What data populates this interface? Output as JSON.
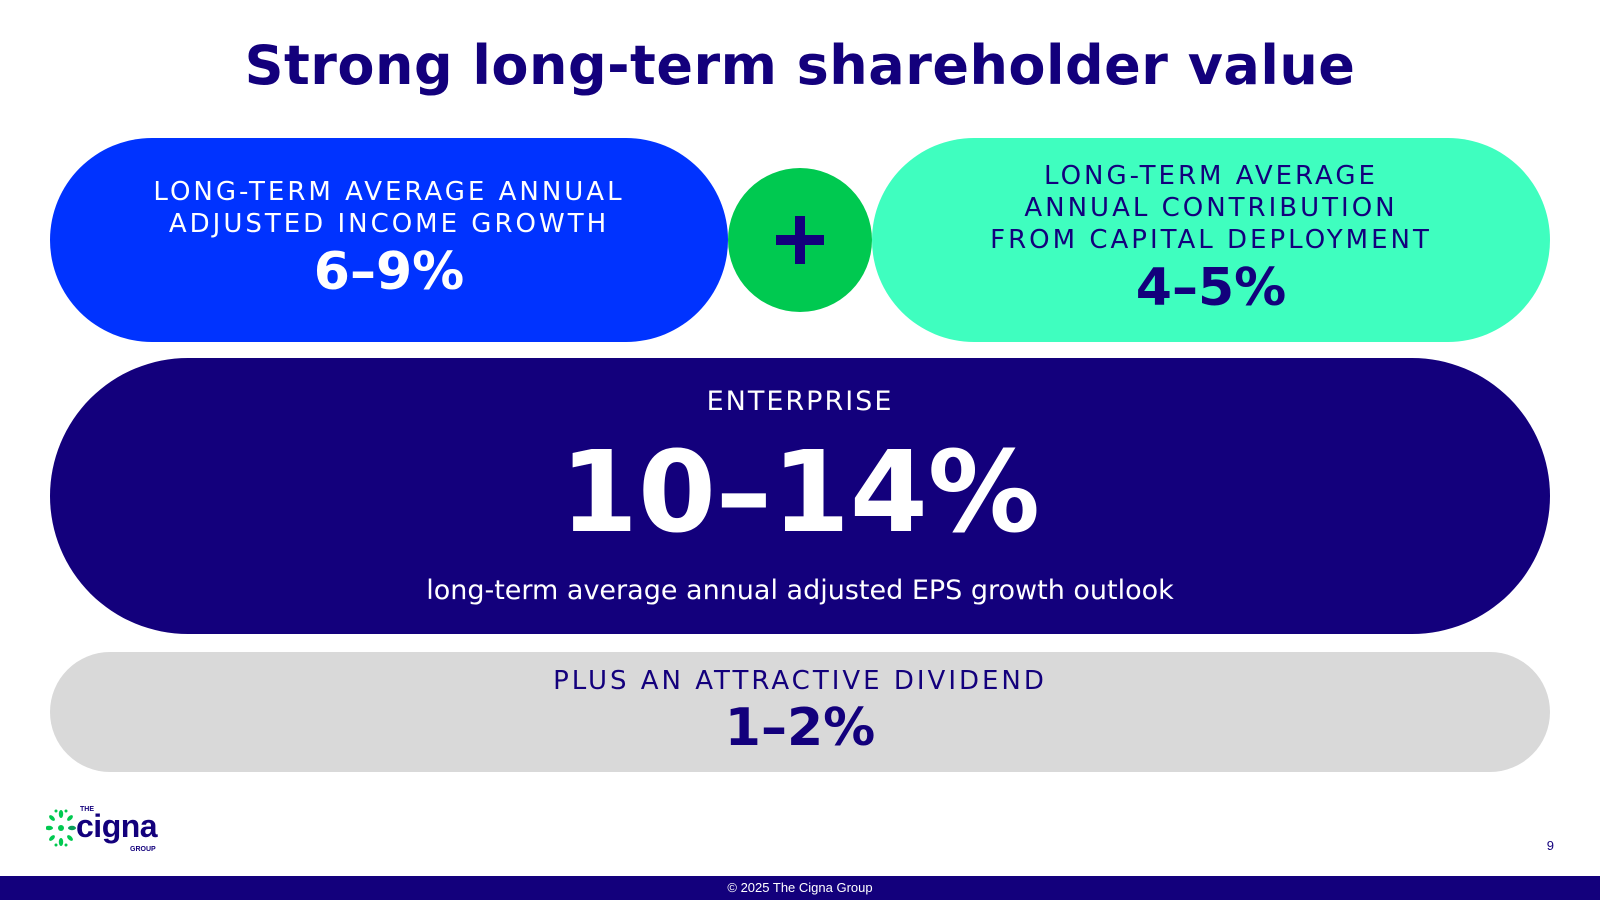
{
  "title": "Strong long-term shareholder value",
  "income_growth": {
    "label_line1": "LONG-TERM AVERAGE ANNUAL",
    "label_line2": "ADJUSTED INCOME GROWTH",
    "value": "6–9%"
  },
  "plus_symbol": "plus-icon",
  "capital_deployment": {
    "label_line1": "LONG-TERM AVERAGE",
    "label_line2": "ANNUAL CONTRIBUTION",
    "label_line3": "FROM CAPITAL DEPLOYMENT",
    "value": "4–5%"
  },
  "enterprise": {
    "label": "ENTERPRISE",
    "value": "10–14%",
    "description": "long-term average annual adjusted EPS growth outlook"
  },
  "dividend": {
    "label": "PLUS AN ATTRACTIVE DIVIDEND",
    "value": "1–2%"
  },
  "logo": {
    "the": "THE",
    "name": "cigna",
    "group": "GROUP"
  },
  "page_number": "9",
  "footer": "© 2025 The Cigna Group",
  "colors": {
    "navy": "#13007c",
    "blue": "#0033ff",
    "mint": "#3ffebf",
    "green": "#00c950",
    "gray": "#d9d9d9"
  }
}
